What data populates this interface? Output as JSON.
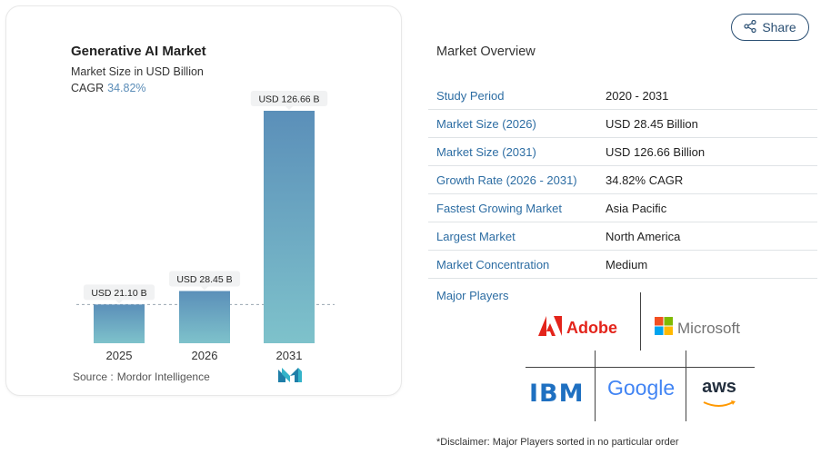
{
  "chart_card": {
    "title": "Generative AI Market",
    "subtitle": "Market Size in USD Billion",
    "cagr_label": "CAGR",
    "cagr_value": "34.82%",
    "source_label": "Source :",
    "source_value": "Mordor Intelligence"
  },
  "chart_data": {
    "type": "bar",
    "categories": [
      "2025",
      "2026",
      "2031"
    ],
    "values": [
      21.1,
      28.45,
      126.66
    ],
    "data_labels": [
      "USD 21.10 B",
      "USD 28.45 B",
      "USD 126.66 B"
    ],
    "title": "Generative AI Market",
    "subtitle": "Market Size in USD Billion",
    "xlabel": "",
    "ylabel": "",
    "ylim": [
      0,
      130
    ],
    "grid": false,
    "reference_line": "dashed line at 2025 value",
    "colors": [
      "#5b8fb9",
      "#7ec2cb"
    ]
  },
  "share": {
    "label": "Share",
    "icon": "share-icon"
  },
  "overview": {
    "title": "Market Overview",
    "rows": [
      {
        "key": "Study Period",
        "value": "2020 - 2031"
      },
      {
        "key": "Market Size (2026)",
        "value": "USD 28.45 Billion"
      },
      {
        "key": "Market Size (2031)",
        "value": "USD 126.66 Billion"
      },
      {
        "key": "Growth Rate (2026 - 2031)",
        "value": "34.82% CAGR"
      },
      {
        "key": "Fastest Growing Market",
        "value": "Asia Pacific"
      },
      {
        "key": "Largest Market",
        "value": "North America"
      },
      {
        "key": "Market Concentration",
        "value": "Medium"
      }
    ],
    "major_players_label": "Major Players",
    "players": [
      "Adobe",
      "Microsoft",
      "IBM",
      "Google",
      "aws"
    ]
  },
  "disclaimer": "*Disclaimer: Major Players sorted in no particular order",
  "colors": {
    "accent": "#2d6da3",
    "bar_top": "#5b8fb9",
    "bar_bottom": "#7ec2cb"
  }
}
